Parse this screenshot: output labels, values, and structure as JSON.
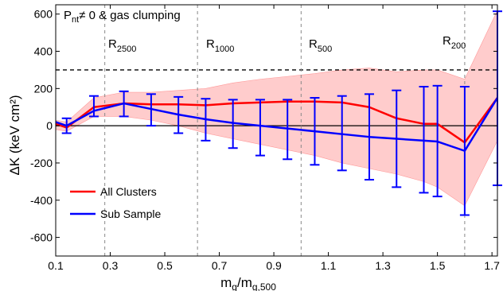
{
  "chart_data": {
    "type": "line",
    "title": "",
    "xlabel": {
      "main": "m",
      "sub1": "g",
      "mid": "/m",
      "sub2": "g,500"
    },
    "ylabel": "ΔK (keV cm²)",
    "xlim": [
      0.1,
      1.72
    ],
    "ylim": [
      -700,
      650
    ],
    "xticks": [
      0.1,
      0.3,
      0.5,
      0.7,
      0.9,
      1.1,
      1.3,
      1.5,
      1.7
    ],
    "yticks": [
      -600,
      -400,
      -200,
      0,
      200,
      400,
      600
    ],
    "grid": false,
    "legend_position": "bottom-left",
    "annotation": {
      "main": "P",
      "sub": "nt",
      "rest": "≠ 0 & gas clumping"
    },
    "reference_lines": [
      {
        "label_main": "R",
        "label_sub": "2500",
        "x": 0.28
      },
      {
        "label_main": "R",
        "label_sub": "1000",
        "x": 0.62
      },
      {
        "label_main": "R",
        "label_sub": "500",
        "x": 1.0
      },
      {
        "label_main": "R",
        "label_sub": "200",
        "x": 1.6
      }
    ],
    "horizontal_lines": [
      {
        "y": 0,
        "style": "solid"
      },
      {
        "y": 300,
        "style": "dashed"
      }
    ],
    "band": {
      "color": "#ffcccc",
      "x": [
        0.1,
        0.14,
        0.24,
        0.35,
        0.45,
        0.55,
        0.65,
        0.75,
        0.85,
        0.95,
        1.05,
        1.15,
        1.25,
        1.35,
        1.45,
        1.5,
        1.6,
        1.72
      ],
      "upper": [
        30,
        20,
        150,
        180,
        180,
        190,
        200,
        230,
        250,
        265,
        280,
        300,
        310,
        290,
        300,
        300,
        250,
        620
      ],
      "lower": [
        -20,
        -30,
        50,
        50,
        30,
        0,
        -40,
        -70,
        -100,
        -130,
        -160,
        -200,
        -230,
        -260,
        -300,
        -330,
        -430,
        -80
      ]
    },
    "series": [
      {
        "name": "All Clusters",
        "color": "#ff0000",
        "x": [
          0.1,
          0.14,
          0.24,
          0.35,
          0.45,
          0.55,
          0.65,
          0.75,
          0.85,
          0.95,
          1.05,
          1.15,
          1.25,
          1.35,
          1.45,
          1.5,
          1.6,
          1.72
        ],
        "y": [
          10,
          -10,
          100,
          120,
          115,
          115,
          110,
          120,
          125,
          130,
          130,
          125,
          100,
          40,
          10,
          10,
          -90,
          150
        ]
      },
      {
        "name": "Sub Sample",
        "color": "#0000ff",
        "x": [
          0.1,
          0.14,
          0.24,
          0.35,
          0.45,
          0.55,
          0.65,
          0.75,
          0.85,
          0.95,
          1.05,
          1.15,
          1.25,
          1.35,
          1.45,
          1.5,
          1.6,
          1.72
        ],
        "y": [
          20,
          0,
          80,
          120,
          90,
          60,
          35,
          15,
          0,
          -15,
          -30,
          -45,
          -60,
          -70,
          -80,
          -85,
          -135,
          150
        ],
        "errorbars": {
          "x": [
            0.14,
            0.24,
            0.35,
            0.45,
            0.55,
            0.65,
            0.75,
            0.85,
            0.95,
            1.05,
            1.15,
            1.25,
            1.35,
            1.45,
            1.5,
            1.6,
            1.72
          ],
          "low": [
            -40,
            50,
            50,
            0,
            -40,
            -80,
            -120,
            -160,
            -180,
            -210,
            -240,
            -290,
            -330,
            -360,
            -380,
            -480,
            -320
          ],
          "high": [
            40,
            160,
            185,
            170,
            155,
            145,
            140,
            140,
            140,
            150,
            160,
            170,
            190,
            210,
            215,
            210,
            615
          ]
        }
      }
    ]
  }
}
